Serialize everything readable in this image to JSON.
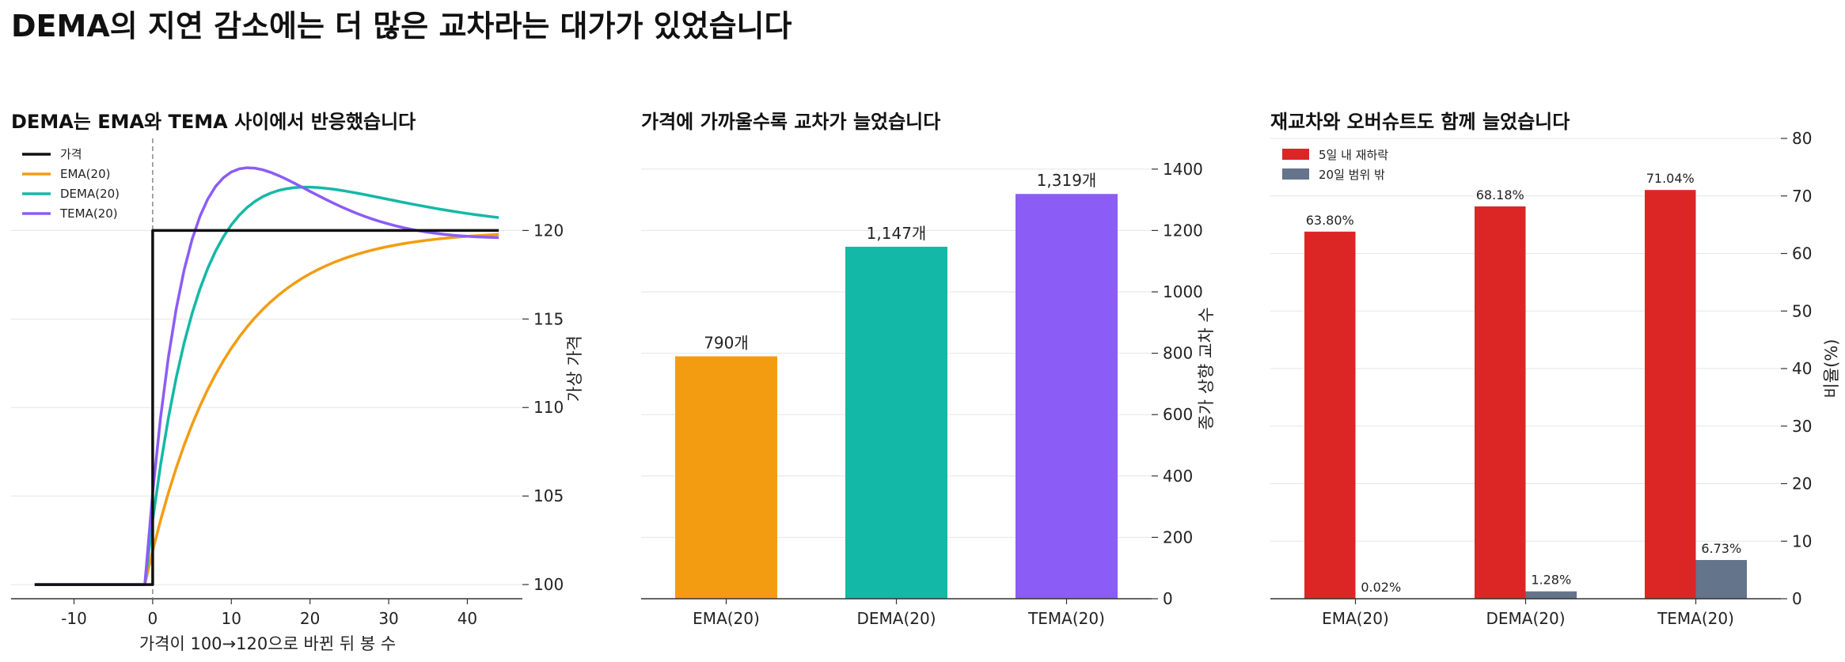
{
  "title": "DEMA의 지연 감소에는 더 많은 교차라는 대가가 있었습니다",
  "colors": {
    "price": "#111111",
    "ema": "#f39c12",
    "dema": "#14b8a6",
    "tema": "#8b5cf6",
    "rebound": "#dc2626",
    "outside": "#64748b",
    "grid": "#e5e5e5",
    "axis": "#333333",
    "marker": "#8a8a8a"
  },
  "chart_data": [
    {
      "type": "line",
      "title": "DEMA는 EMA와 TEMA 사이에서 반응했습니다",
      "xlabel": "가격이 100→120으로 바뀐 뒤 봉 수",
      "ylabel": "가상 가격",
      "xlim": [
        -18,
        47
      ],
      "ylim": [
        99.2,
        125.2
      ],
      "x_ticks": [
        -10,
        0,
        10,
        20,
        30,
        40
      ],
      "y_ticks": [
        100,
        105,
        110,
        115,
        120
      ],
      "x_tick_labels": [
        "-10",
        "0",
        "10",
        "20",
        "30",
        "40"
      ],
      "y_tick_labels": [
        "100",
        "105",
        "110",
        "115",
        "120"
      ],
      "grid": "horizontal",
      "legend": "top-left",
      "step_at": 0,
      "series": [
        {
          "name": "가격",
          "color_key": "price",
          "model": "price",
          "base": 100,
          "level": 120
        },
        {
          "name": "EMA(20)",
          "color_key": "ema",
          "model": "ema",
          "period": 20,
          "base": 100,
          "level": 120
        },
        {
          "name": "DEMA(20)",
          "color_key": "dema",
          "model": "dema",
          "period": 20,
          "base": 100,
          "level": 120
        },
        {
          "name": "TEMA(20)",
          "color_key": "tema",
          "model": "tema",
          "period": 20,
          "base": 100,
          "level": 120
        }
      ],
      "x_range": [
        -15,
        44
      ]
    },
    {
      "type": "bar",
      "title": "가격에 가까울수록 교차가 늘었습니다",
      "ylabel": "종가 상향 교차 수",
      "categories": [
        "EMA(20)",
        "DEMA(20)",
        "TEMA(20)"
      ],
      "values": [
        790,
        1147,
        1319
      ],
      "value_labels": [
        "790개",
        "1,147개",
        "1,319개"
      ],
      "color_keys": [
        "ema",
        "dema",
        "tema"
      ],
      "ylim": [
        0,
        1500
      ],
      "y_ticks": [
        0,
        200,
        400,
        600,
        800,
        1000,
        1200,
        1400
      ],
      "y_tick_labels": [
        "0",
        "200",
        "400",
        "600",
        "800",
        "1000",
        "1200",
        "1400"
      ],
      "grid": "horizontal"
    },
    {
      "type": "bar",
      "title": "재교차와 오버슈트도 함께 늘었습니다",
      "ylabel": "비율(%)",
      "categories": [
        "EMA(20)",
        "DEMA(20)",
        "TEMA(20)"
      ],
      "series": [
        {
          "name": "5일 내 재하락",
          "color_key": "rebound",
          "values": [
            63.8,
            68.18,
            71.04
          ],
          "value_labels": [
            "63.80%",
            "68.18%",
            "71.04%"
          ]
        },
        {
          "name": "20일 범위 밖",
          "color_key": "outside",
          "values": [
            0.02,
            1.28,
            6.73
          ],
          "value_labels": [
            "0.02%",
            "1.28%",
            "6.73%"
          ]
        }
      ],
      "ylim": [
        0,
        80
      ],
      "y_ticks": [
        0,
        10,
        20,
        30,
        40,
        50,
        60,
        70,
        80
      ],
      "y_tick_labels": [
        "0",
        "10",
        "20",
        "30",
        "40",
        "50",
        "60",
        "70",
        "80"
      ],
      "grid": "horizontal",
      "legend": "top-left"
    }
  ]
}
